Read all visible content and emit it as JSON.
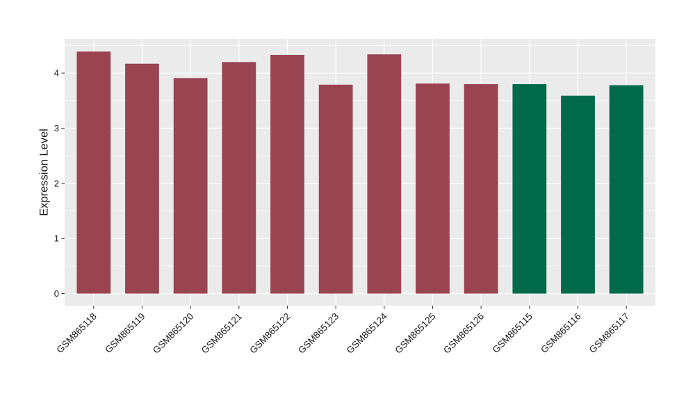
{
  "figure": {
    "background": "#FFFFFF",
    "panel_background": "#EBEBEB",
    "grid_color": "#FFFFFF",
    "tick_color": "#333333",
    "axis_text_color": "#1A1A1A"
  },
  "chart_data": {
    "type": "bar",
    "title": "",
    "xlabel": "",
    "ylabel": "Expression Level",
    "categories": [
      "GSM865118",
      "GSM865119",
      "GSM865120",
      "GSM865121",
      "GSM865122",
      "GSM865123",
      "GSM865124",
      "GSM865125",
      "GSM865126",
      "GSM865115",
      "GSM865116",
      "GSM865117"
    ],
    "values": [
      4.39,
      4.17,
      3.91,
      4.2,
      4.33,
      3.79,
      4.34,
      3.81,
      3.8,
      3.8,
      3.59,
      3.78
    ],
    "bar_colors": [
      "#9A4452",
      "#9A4452",
      "#9A4452",
      "#9A4452",
      "#9A4452",
      "#9A4452",
      "#9A4452",
      "#9A4452",
      "#9A4452",
      "#006A4B",
      "#006A4B",
      "#006A4B"
    ],
    "group_colors": {
      "red": "#9A4452",
      "green": "#006A4B"
    },
    "yticks": [
      0,
      1,
      2,
      3,
      4
    ],
    "ylim": [
      -0.22,
      4.62
    ],
    "x_tick_angle_deg": 45,
    "grid": "horizontal major+minor, vertical major at category centers",
    "legend": "none"
  }
}
